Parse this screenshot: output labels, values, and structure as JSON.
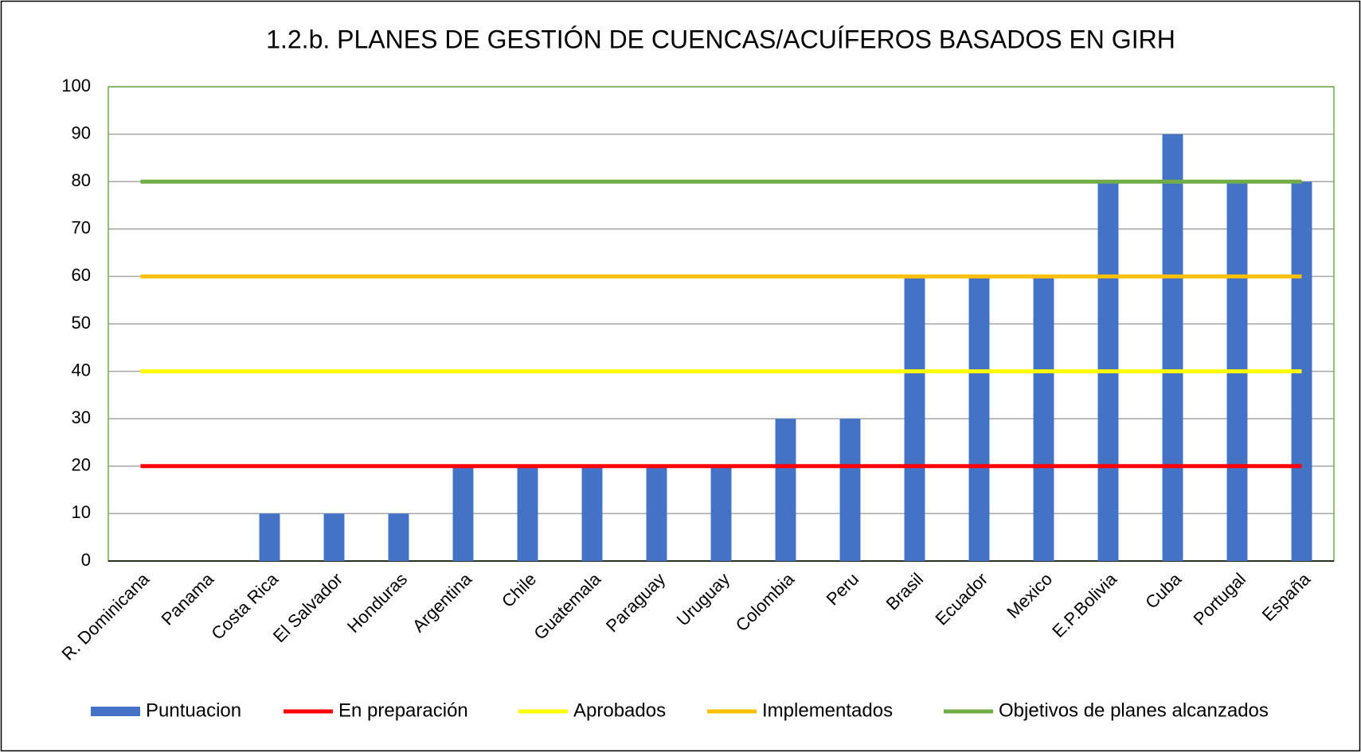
{
  "chart_data": {
    "type": "bar",
    "title": "1.2.b. PLANES DE GESTIÓN DE CUENCAS/ACUÍFEROS BASADOS EN GIRH",
    "categories": [
      "R. Dominicana",
      "Panama",
      "Costa Rica",
      "El Salvador",
      "Honduras",
      "Argentina",
      "Chile",
      "Guatemala",
      "Paraguay",
      "Uruguay",
      "Colombia",
      "Peru",
      "Brasil",
      "Ecuador",
      "Mexico",
      "E.P.Bolivia",
      "Cuba",
      "Portugal",
      "España"
    ],
    "series": [
      {
        "name": "Puntuacion",
        "type": "bar",
        "color": "#4472c4",
        "values": [
          0,
          0,
          10,
          10,
          10,
          20,
          20,
          20,
          20,
          20,
          30,
          30,
          60,
          60,
          60,
          80,
          90,
          80,
          80
        ]
      },
      {
        "name": "En preparación",
        "type": "line",
        "color": "#ff0000",
        "values": [
          20,
          20,
          20,
          20,
          20,
          20,
          20,
          20,
          20,
          20,
          20,
          20,
          20,
          20,
          20,
          20,
          20,
          20,
          20
        ]
      },
      {
        "name": "Aprobados",
        "type": "line",
        "color": "#ffff00",
        "values": [
          40,
          40,
          40,
          40,
          40,
          40,
          40,
          40,
          40,
          40,
          40,
          40,
          40,
          40,
          40,
          40,
          40,
          40,
          40
        ]
      },
      {
        "name": "Implementados",
        "type": "line",
        "color": "#ffc000",
        "values": [
          60,
          60,
          60,
          60,
          60,
          60,
          60,
          60,
          60,
          60,
          60,
          60,
          60,
          60,
          60,
          60,
          60,
          60,
          60
        ]
      },
      {
        "name": "Objetivos  de planes alcanzados",
        "type": "line",
        "color": "#70ad47",
        "values": [
          80,
          80,
          80,
          80,
          80,
          80,
          80,
          80,
          80,
          80,
          80,
          80,
          80,
          80,
          80,
          80,
          80,
          80,
          80
        ]
      }
    ],
    "ylim": [
      0,
      100
    ],
    "yticks": [
      0,
      10,
      20,
      30,
      40,
      50,
      60,
      70,
      80,
      90,
      100
    ],
    "grid": true,
    "legend": "bottom"
  }
}
